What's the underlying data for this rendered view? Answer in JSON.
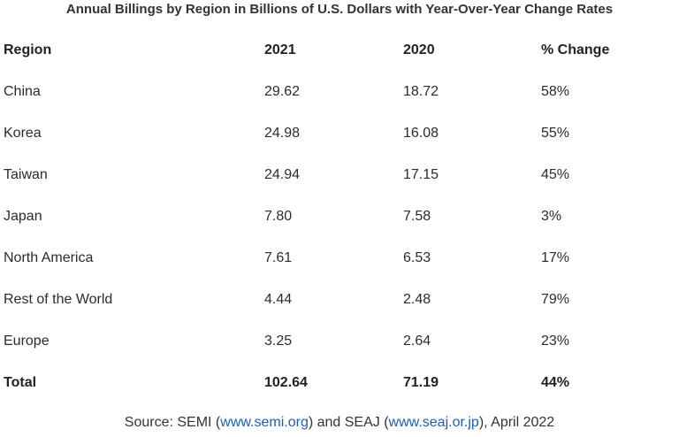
{
  "chart_data": {
    "type": "table",
    "title": "Annual Billings by Region in Billions of U.S. Dollars with Year-Over-Year Change Rates",
    "columns": [
      "Region",
      "2021",
      "2020",
      "% Change"
    ],
    "rows": [
      [
        "China",
        "29.62",
        "18.72",
        "58%"
      ],
      [
        "Korea",
        "24.98",
        "16.08",
        "55%"
      ],
      [
        "Taiwan",
        "24.94",
        "17.15",
        "45%"
      ],
      [
        "Japan",
        "7.80",
        "7.58",
        "3%"
      ],
      [
        "North America",
        "7.61",
        "6.53",
        "17%"
      ],
      [
        "Rest of the World",
        "4.44",
        "2.48",
        "79%"
      ],
      [
        "Europe",
        "3.25",
        "2.64",
        "23%"
      ]
    ],
    "total": [
      "Total",
      "102.64",
      "71.19",
      "44%"
    ]
  },
  "source": {
    "prefix": "Source: SEMI (",
    "link1": "www.semi.org",
    "middle": ") and SEAJ (",
    "link2": "www.seaj.or.jp",
    "suffix": "), April 2022"
  },
  "colors": {
    "text": "#222222",
    "link": "#1a5fb4"
  }
}
